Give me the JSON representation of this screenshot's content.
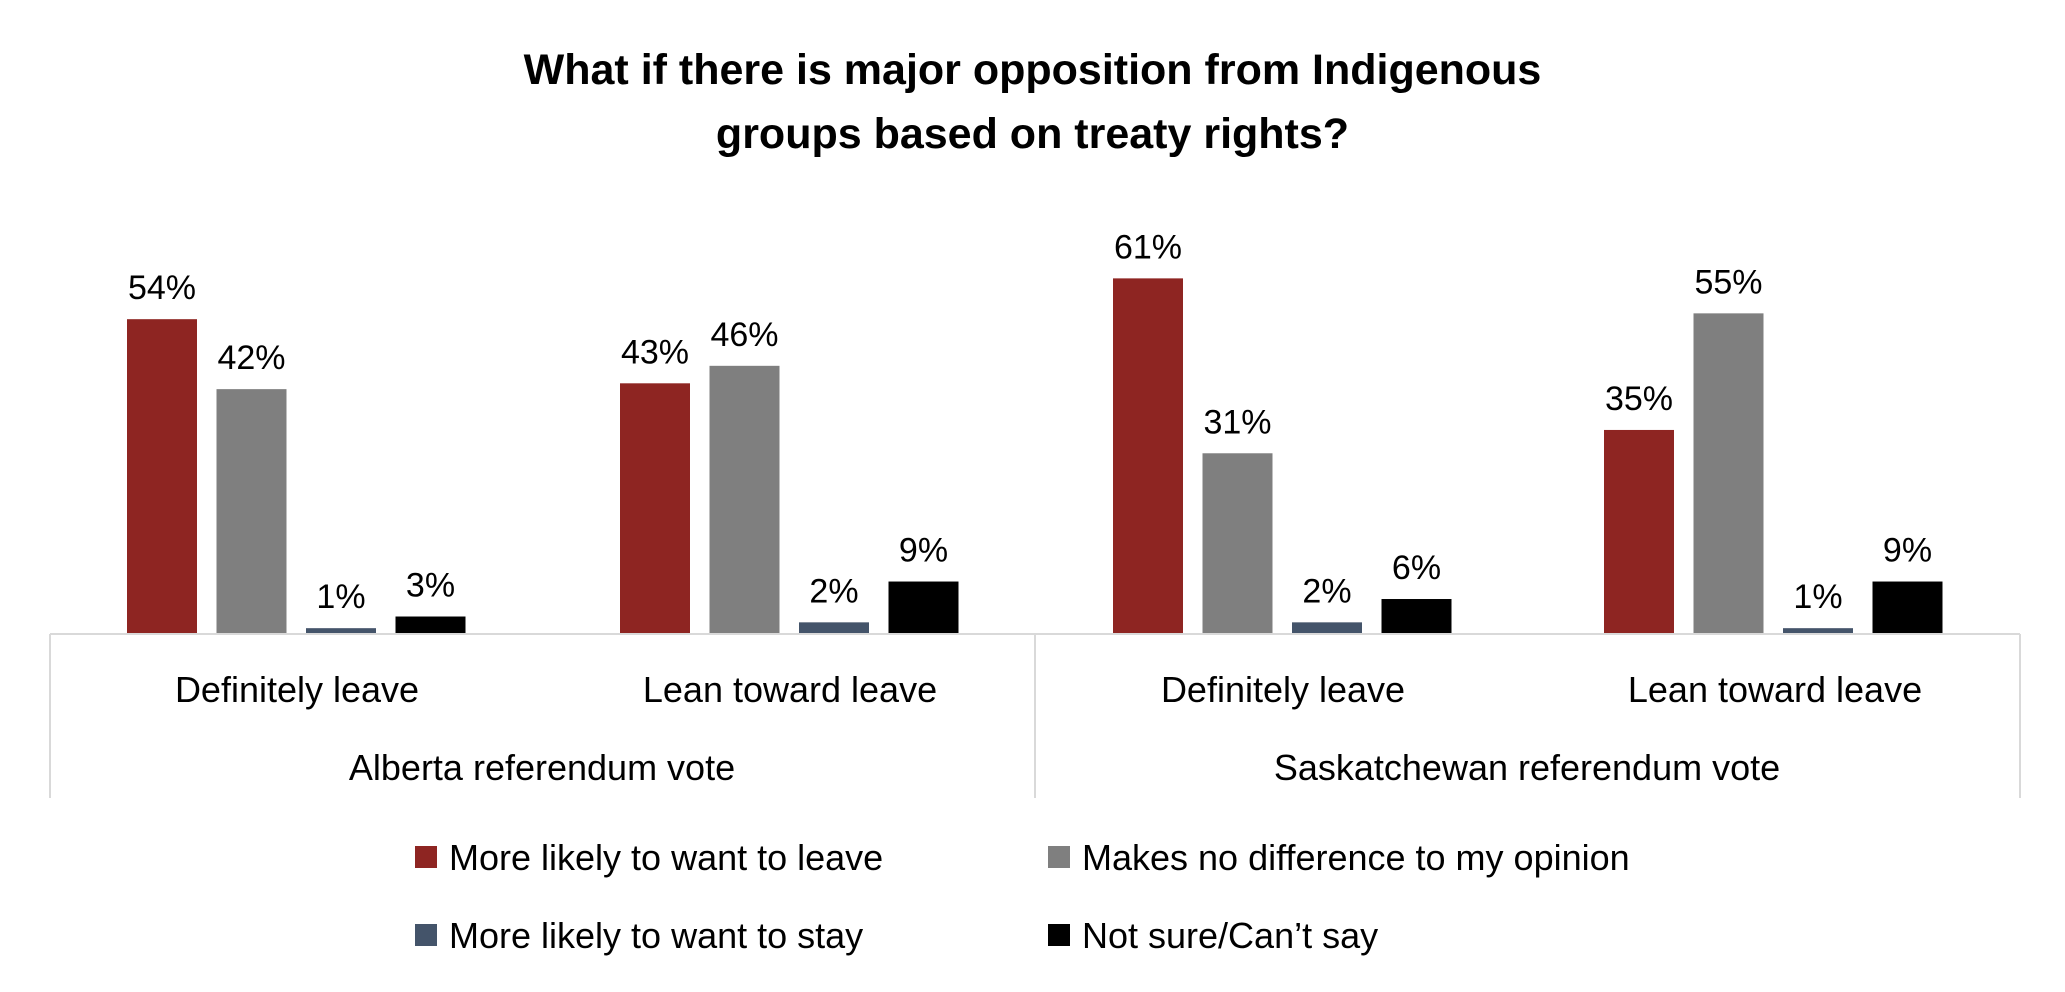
{
  "chart_data": {
    "type": "bar",
    "title_lines": [
      "What if there is major opposition from Indigenous",
      "groups based on treaty rights?"
    ],
    "groups": [
      "Alberta referendum vote",
      "Saskatchewan referendum vote"
    ],
    "categories": [
      "Definitely leave",
      "Lean toward leave",
      "Definitely leave",
      "Lean toward leave"
    ],
    "series": [
      {
        "name": "More likely to want to leave",
        "color": "#8e2522",
        "values": [
          54,
          43,
          61,
          35
        ],
        "labels": [
          "54%",
          "43%",
          "61%",
          "35%"
        ]
      },
      {
        "name": "Makes no difference to my opinion",
        "color": "#7f7f7f",
        "values": [
          42,
          46,
          31,
          55
        ],
        "labels": [
          "42%",
          "46%",
          "31%",
          "55%"
        ]
      },
      {
        "name": "More likely to want to stay",
        "color": "#44546a",
        "values": [
          1,
          2,
          2,
          1
        ],
        "labels": [
          "1%",
          "2%",
          "2%",
          "1%"
        ]
      },
      {
        "name": "Not sure/Can’t say",
        "color": "#000000",
        "values": [
          3,
          9,
          6,
          9
        ],
        "labels": [
          "3%",
          "9%",
          "6%",
          "9%"
        ]
      }
    ],
    "ylim": [
      0,
      65
    ],
    "grid": false,
    "legend_position": "bottom"
  }
}
